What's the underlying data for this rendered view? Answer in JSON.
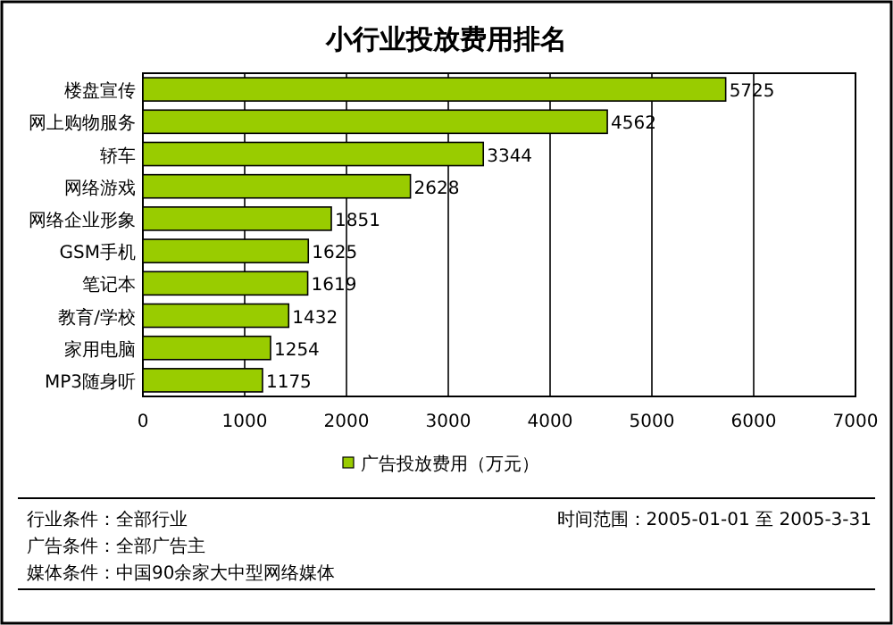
{
  "chart_data": {
    "type": "bar",
    "orientation": "horizontal",
    "title": "小行业投放费用排名",
    "categories": [
      "楼盘宣传",
      "网上购物服务",
      "轿车",
      "网络游戏",
      "网络企业形象",
      "GSM手机",
      "笔记本",
      "教育/学校",
      "家用电脑",
      "MP3随身听"
    ],
    "series": [
      {
        "name": "广告投放费用（万元）",
        "color": "#99cc00",
        "values": [
          5725,
          4562,
          3344,
          2628,
          1851,
          1625,
          1619,
          1432,
          1254,
          1175
        ]
      }
    ],
    "xlim": [
      0,
      7000
    ],
    "xticks": [
      0,
      1000,
      2000,
      3000,
      4000,
      5000,
      6000,
      7000
    ],
    "grid": "x",
    "legend": "bottom",
    "data_labels": true,
    "annotations": [
      "行业条件：全部行业",
      "广告条件：全部广告主",
      "媒体条件：中国90余家大中型网络媒体",
      "时间范围：2005-01-01 至 2005-3-31"
    ]
  }
}
